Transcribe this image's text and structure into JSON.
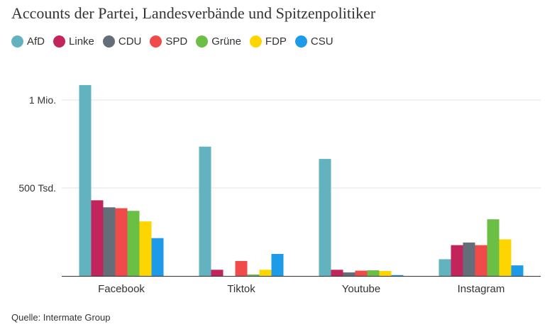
{
  "title": "Accounts der Partei, Landesverbände und Spitzenpolitiker",
  "source": "Quelle: Intermate Group",
  "chart_data": {
    "type": "bar",
    "categories": [
      "Facebook",
      "Tiktok",
      "Youtube",
      "Instagram"
    ],
    "series": [
      {
        "name": "AfD",
        "color": "#62b3bf",
        "values": [
          1085000,
          735000,
          665000,
          95000
        ]
      },
      {
        "name": "Linke",
        "color": "#c2255c",
        "values": [
          430000,
          35000,
          35000,
          175000
        ]
      },
      {
        "name": "CDU",
        "color": "#646e79",
        "values": [
          390000,
          0,
          20000,
          190000
        ]
      },
      {
        "name": "SPD",
        "color": "#f04a4a",
        "values": [
          385000,
          85000,
          30000,
          175000
        ]
      },
      {
        "name": "Grüne",
        "color": "#6cbf45",
        "values": [
          370000,
          8000,
          32000,
          322000
        ]
      },
      {
        "name": "FDP",
        "color": "#ffd500",
        "values": [
          310000,
          35000,
          28000,
          208000
        ]
      },
      {
        "name": "CSU",
        "color": "#1e9be8",
        "values": [
          215000,
          125000,
          5000,
          60000
        ]
      }
    ],
    "ylim": [
      0,
      1100000
    ],
    "yticks": [
      {
        "value": 500000,
        "label": "500 Tsd."
      },
      {
        "value": 1000000,
        "label": "1 Mio."
      }
    ],
    "grid": true,
    "legend_position": "top-left"
  }
}
